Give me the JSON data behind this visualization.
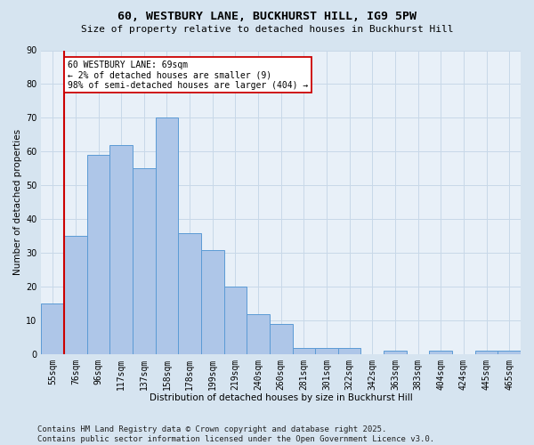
{
  "title_line1": "60, WESTBURY LANE, BUCKHURST HILL, IG9 5PW",
  "title_line2": "Size of property relative to detached houses in Buckhurst Hill",
  "xlabel": "Distribution of detached houses by size in Buckhurst Hill",
  "ylabel": "Number of detached properties",
  "categories": [
    "55sqm",
    "76sqm",
    "96sqm",
    "117sqm",
    "137sqm",
    "158sqm",
    "178sqm",
    "199sqm",
    "219sqm",
    "240sqm",
    "260sqm",
    "281sqm",
    "301sqm",
    "322sqm",
    "342sqm",
    "363sqm",
    "383sqm",
    "404sqm",
    "424sqm",
    "445sqm",
    "465sqm"
  ],
  "values": [
    15,
    35,
    59,
    62,
    55,
    70,
    36,
    31,
    20,
    12,
    9,
    2,
    2,
    2,
    0,
    1,
    0,
    1,
    0,
    1,
    1
  ],
  "bar_color": "#aec6e8",
  "bar_edge_color": "#5b9bd5",
  "vline_index": 1,
  "vline_color": "#cc0000",
  "vline_label_title": "60 WESTBURY LANE: 69sqm",
  "vline_label_line2": "← 2% of detached houses are smaller (9)",
  "vline_label_line3": "98% of semi-detached houses are larger (404) →",
  "annotation_box_color": "#cc0000",
  "annotation_box_fill": "#ffffff",
  "ylim": [
    0,
    90
  ],
  "yticks": [
    0,
    10,
    20,
    30,
    40,
    50,
    60,
    70,
    80,
    90
  ],
  "grid_color": "#c8d8e8",
  "bg_color": "#d6e4f0",
  "plot_bg_color": "#e8f0f8",
  "footnote": "Contains HM Land Registry data © Crown copyright and database right 2025.\nContains public sector information licensed under the Open Government Licence v3.0.",
  "title1_fontsize": 9.5,
  "title2_fontsize": 8.0,
  "tick_fontsize": 7.0,
  "label_fontsize": 7.5,
  "annot_fontsize": 7.0,
  "footnote_fontsize": 6.5
}
